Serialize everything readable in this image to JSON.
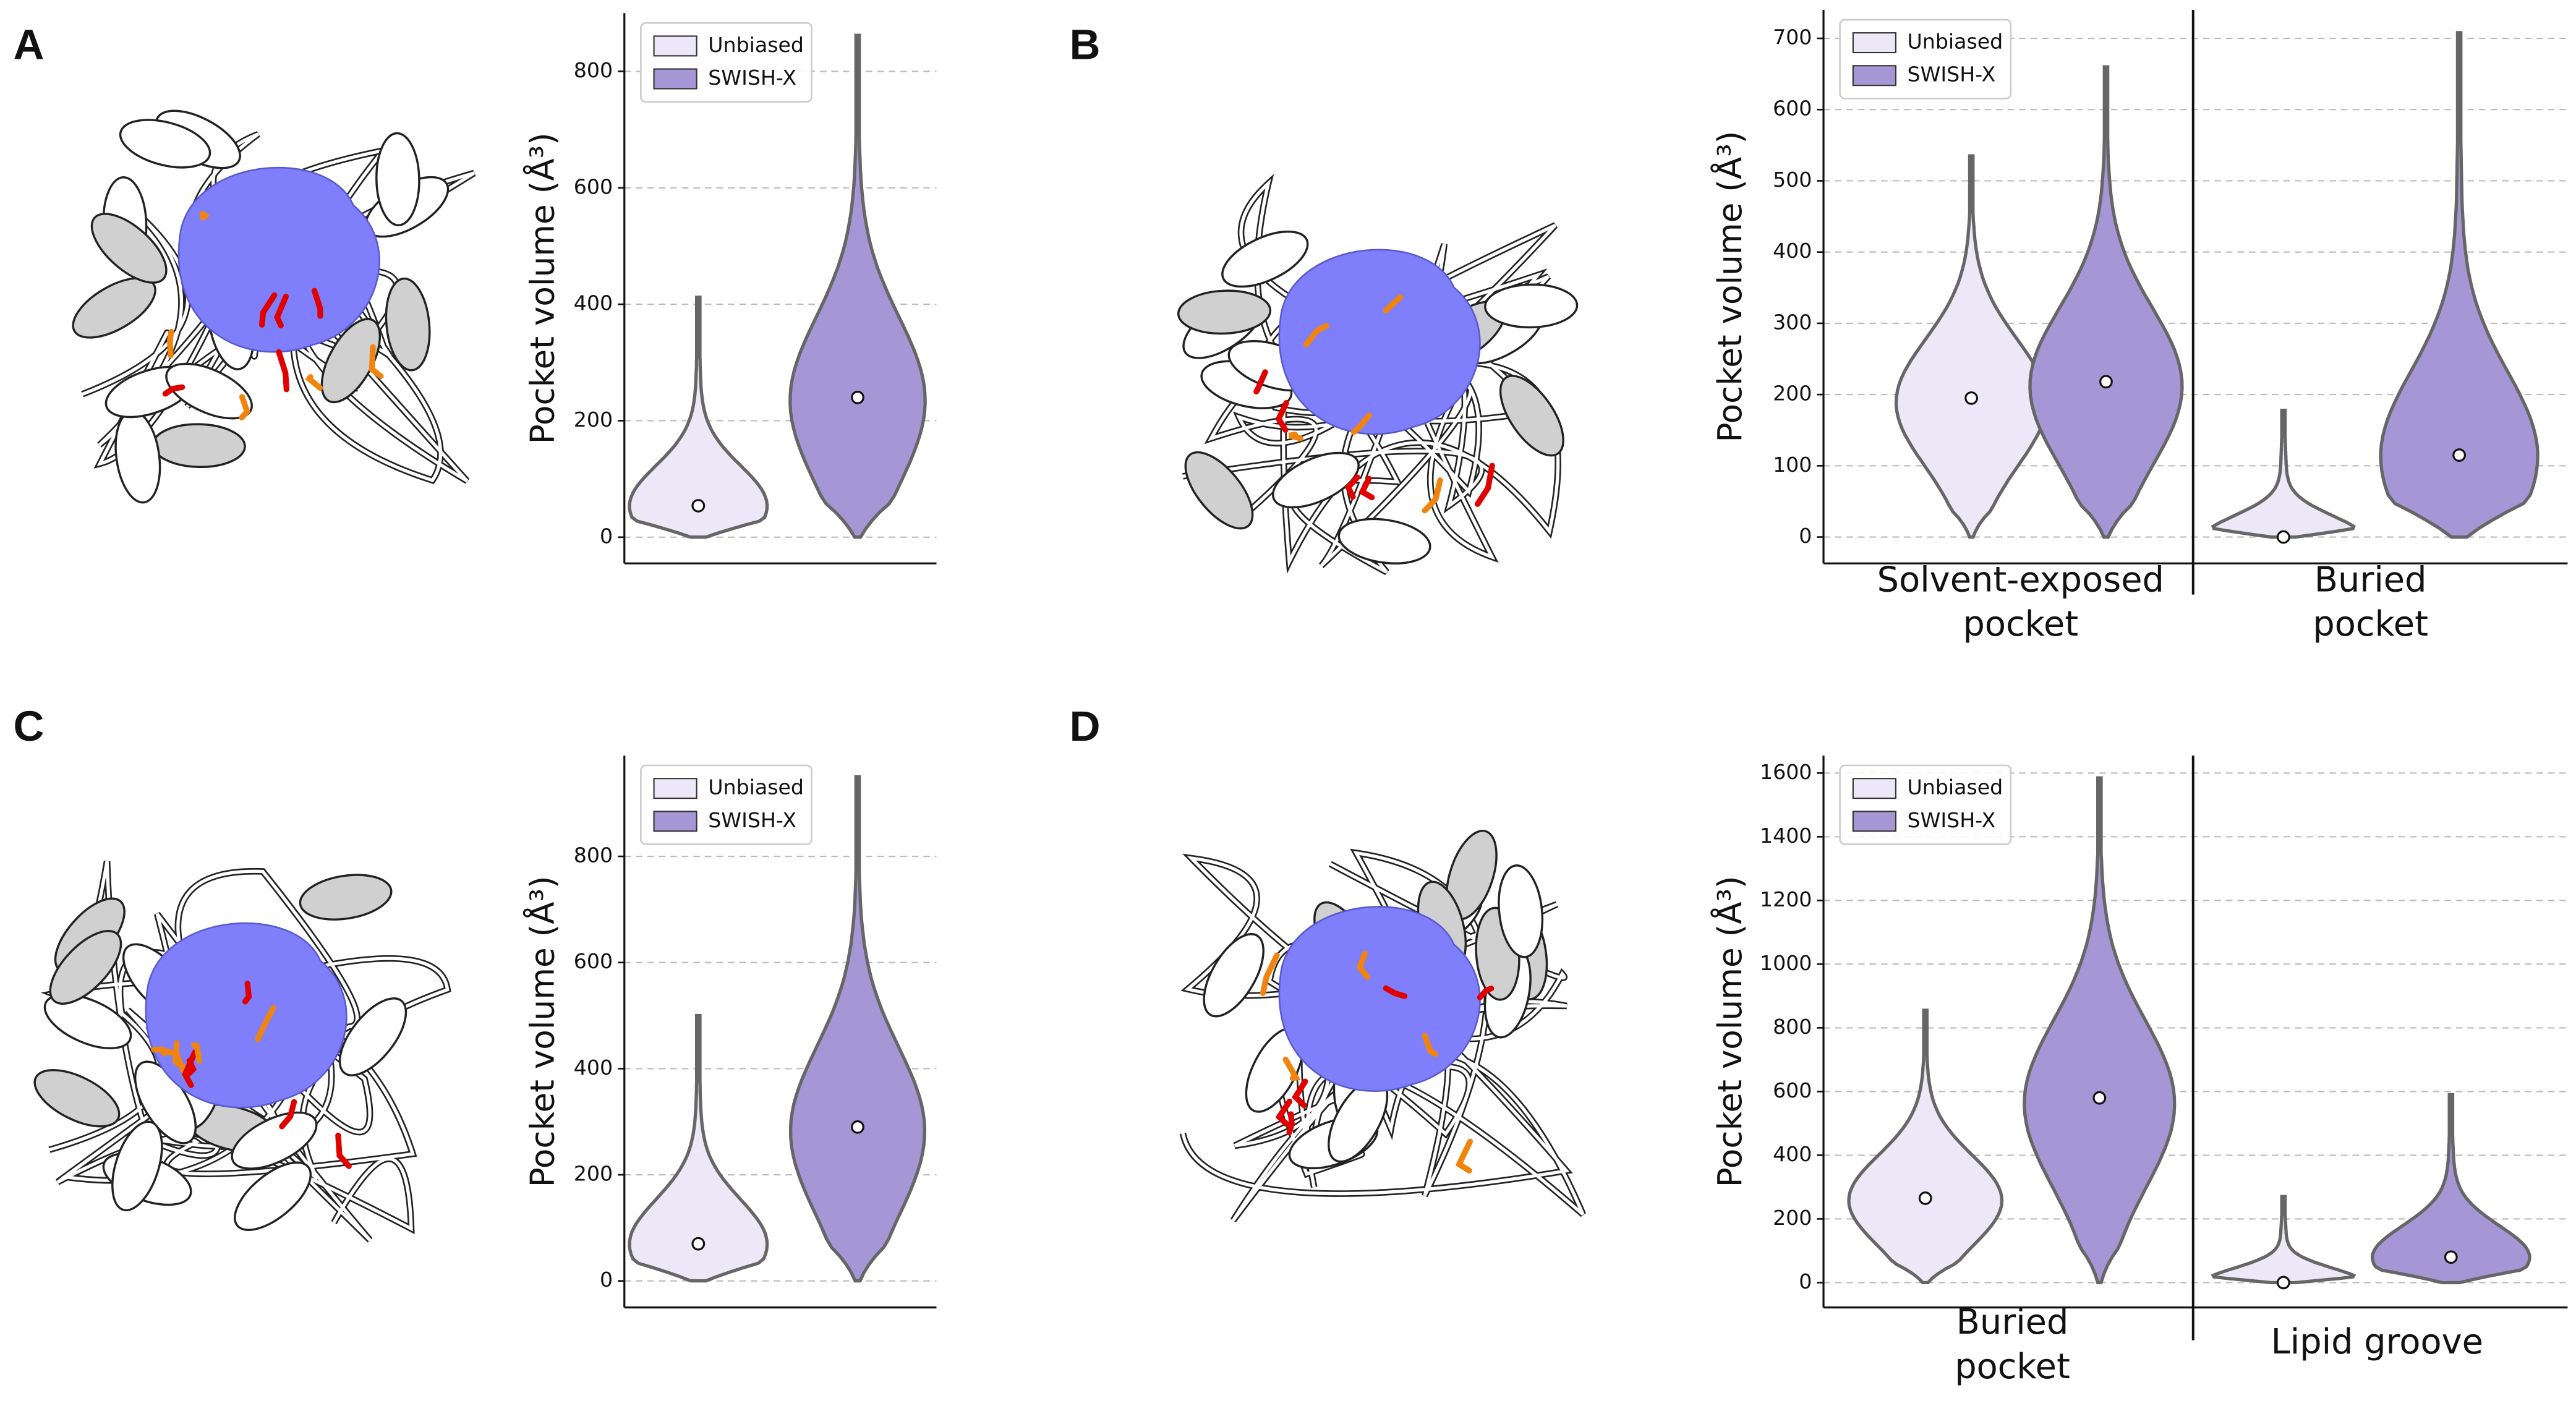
{
  "chart_data": [
    {
      "type": "violin",
      "panel": "A",
      "ylabel": "Pocket volume (Å³)",
      "ylim": [
        -45,
        900
      ],
      "yticks": [
        0,
        200,
        400,
        600,
        800
      ],
      "grid": true,
      "legend": "upper left",
      "categories": [
        null
      ],
      "series": [
        {
          "name": "Unbiased",
          "color": "#ece8f7",
          "minima": [
            0
          ],
          "medians": [
            54
          ],
          "maxima": [
            412
          ]
        },
        {
          "name": "SWISH-X",
          "color": "#a597d6",
          "minima": [
            0
          ],
          "medians": [
            240
          ],
          "maxima": [
            862
          ]
        }
      ]
    },
    {
      "type": "violin",
      "panel": "B",
      "ylabel": "Pocket volume (Å³)",
      "ylim": [
        -37,
        740
      ],
      "yticks": [
        0,
        100,
        200,
        300,
        400,
        500,
        600,
        700
      ],
      "grid": true,
      "legend": "upper left",
      "categories": [
        "Solvent-exposed\npocket",
        "Buried\npocket"
      ],
      "series": [
        {
          "name": "Unbiased",
          "color": "#ece8f7",
          "minima": [
            0,
            0
          ],
          "medians": [
            195,
            0
          ],
          "maxima": [
            535,
            178
          ]
        },
        {
          "name": "SWISH-X",
          "color": "#a597d6",
          "minima": [
            0,
            0
          ],
          "medians": [
            218,
            115
          ],
          "maxima": [
            660,
            708
          ]
        }
      ]
    },
    {
      "type": "violin",
      "panel": "C",
      "ylabel": "Pocket volume (Å³)",
      "ylim": [
        -50,
        990
      ],
      "yticks": [
        0,
        200,
        400,
        600,
        800
      ],
      "grid": true,
      "legend": "upper left",
      "categories": [
        null
      ],
      "series": [
        {
          "name": "Unbiased",
          "color": "#ece8f7",
          "minima": [
            0
          ],
          "medians": [
            70
          ],
          "maxima": [
            500
          ]
        },
        {
          "name": "SWISH-X",
          "color": "#a597d6",
          "minima": [
            0
          ],
          "medians": [
            290
          ],
          "maxima": [
            950
          ]
        }
      ]
    },
    {
      "type": "violin",
      "panel": "D",
      "ylabel": "Pocket volume (Å³)",
      "ylim": [
        -78,
        1655
      ],
      "yticks": [
        0,
        200,
        400,
        600,
        800,
        1000,
        1200,
        1400,
        1600
      ],
      "grid": true,
      "legend": "upper left",
      "categories": [
        "Buried\npocket",
        "Lipid groove"
      ],
      "series": [
        {
          "name": "Unbiased",
          "color": "#ece8f7",
          "minima": [
            0,
            0
          ],
          "medians": [
            265,
            0
          ],
          "maxima": [
            855,
            270
          ]
        },
        {
          "name": "SWISH-X",
          "color": "#a597d6",
          "minima": [
            0,
            0
          ],
          "medians": [
            580,
            80
          ],
          "maxima": [
            1585,
            590
          ]
        }
      ]
    }
  ]
}
